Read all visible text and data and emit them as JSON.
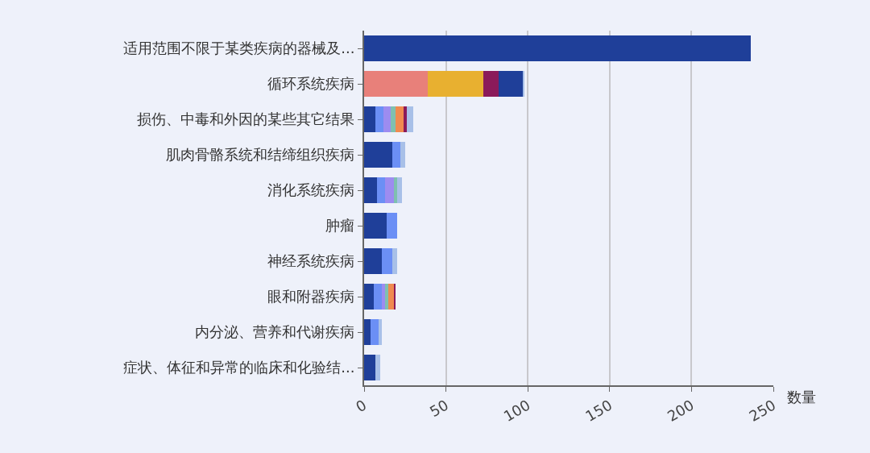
{
  "chart_data": {
    "type": "bar",
    "orientation": "horizontal",
    "stacked": true,
    "xlabel": "数量",
    "categories": [
      "适用范围不限于某类疾病的器械及...",
      "循环系统疾病",
      "损伤、中毒和外因的某些其它结果",
      "肌肉骨骼系统和结缔组织疾病",
      "消化系统疾病",
      "肿瘤",
      "神经系统疾病",
      "眼和附器疾病",
      "内分泌、营养和代谢疾病",
      "症状、体征和异常的临床和化验结..."
    ],
    "series": [
      {
        "color": "#e8807a",
        "values": [
          null,
          39,
          null,
          null,
          null,
          null,
          null,
          null,
          null,
          null
        ]
      },
      {
        "color": "#e8b030",
        "values": [
          null,
          34,
          null,
          null,
          null,
          null,
          null,
          null,
          null,
          null
        ]
      },
      {
        "color": "#8b1a5a",
        "values": [
          null,
          9,
          null,
          null,
          null,
          null,
          null,
          null,
          null,
          null
        ]
      },
      {
        "color": "#1f3f99",
        "values": [
          236,
          15,
          7,
          17,
          8,
          14,
          11,
          6,
          4,
          7
        ]
      },
      {
        "color": "#6b8ff5",
        "values": [
          null,
          null,
          5,
          5,
          5,
          6,
          6,
          5,
          5,
          null
        ]
      },
      {
        "color": "#9d8cf0",
        "values": [
          null,
          null,
          4,
          null,
          5,
          null,
          null,
          2,
          null,
          null
        ]
      },
      {
        "color": "#7fc0b0",
        "values": [
          null,
          null,
          3,
          null,
          2,
          null,
          null,
          2,
          null,
          null
        ]
      },
      {
        "color": "#f08a50",
        "values": [
          null,
          null,
          5,
          null,
          null,
          null,
          null,
          3,
          null,
          null
        ]
      },
      {
        "color": "#8b1a5a",
        "values": [
          null,
          null,
          2,
          null,
          null,
          null,
          null,
          1,
          null,
          null
        ]
      },
      {
        "color": "#a8c0e8",
        "values": [
          null,
          1,
          4,
          3,
          3,
          null,
          3,
          null,
          2,
          3
        ]
      }
    ],
    "xlim": [
      0,
      250
    ],
    "xticks": [
      0,
      50,
      100,
      150,
      200,
      250
    ],
    "grid": "x"
  }
}
